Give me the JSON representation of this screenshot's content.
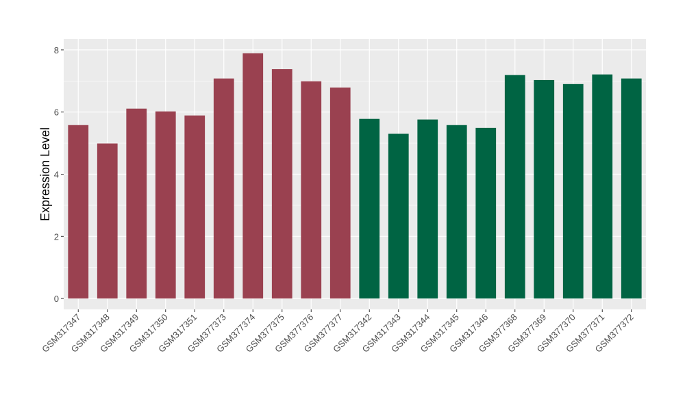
{
  "chart_data": {
    "type": "bar",
    "title": "",
    "xlabel": "",
    "ylabel": "Expression Level",
    "ylim": [
      -0.35,
      8.35
    ],
    "yticks": [
      0,
      2,
      4,
      6,
      8
    ],
    "grid": true,
    "legend": "none",
    "categories": [
      "GSM317347",
      "GSM317348",
      "GSM317349",
      "GSM317350",
      "GSM317351",
      "GSM377373",
      "GSM377374",
      "GSM377375",
      "GSM377376",
      "GSM377377",
      "GSM317342",
      "GSM317343",
      "GSM317344",
      "GSM317345",
      "GSM317346",
      "GSM377368",
      "GSM377369",
      "GSM377370",
      "GSM377371",
      "GSM377372"
    ],
    "values": [
      5.58,
      4.99,
      6.11,
      6.02,
      5.89,
      7.08,
      7.89,
      7.38,
      6.99,
      6.79,
      5.78,
      5.3,
      5.76,
      5.58,
      5.49,
      7.19,
      7.03,
      6.9,
      7.21,
      7.08
    ],
    "group_colors": [
      "#9a4150",
      "#9a4150",
      "#9a4150",
      "#9a4150",
      "#9a4150",
      "#9a4150",
      "#9a4150",
      "#9a4150",
      "#9a4150",
      "#9a4150",
      "#006443",
      "#006443",
      "#006443",
      "#006443",
      "#006443",
      "#006443",
      "#006443",
      "#006443",
      "#006443",
      "#006443"
    ],
    "panel_color": "#ebebeb"
  }
}
